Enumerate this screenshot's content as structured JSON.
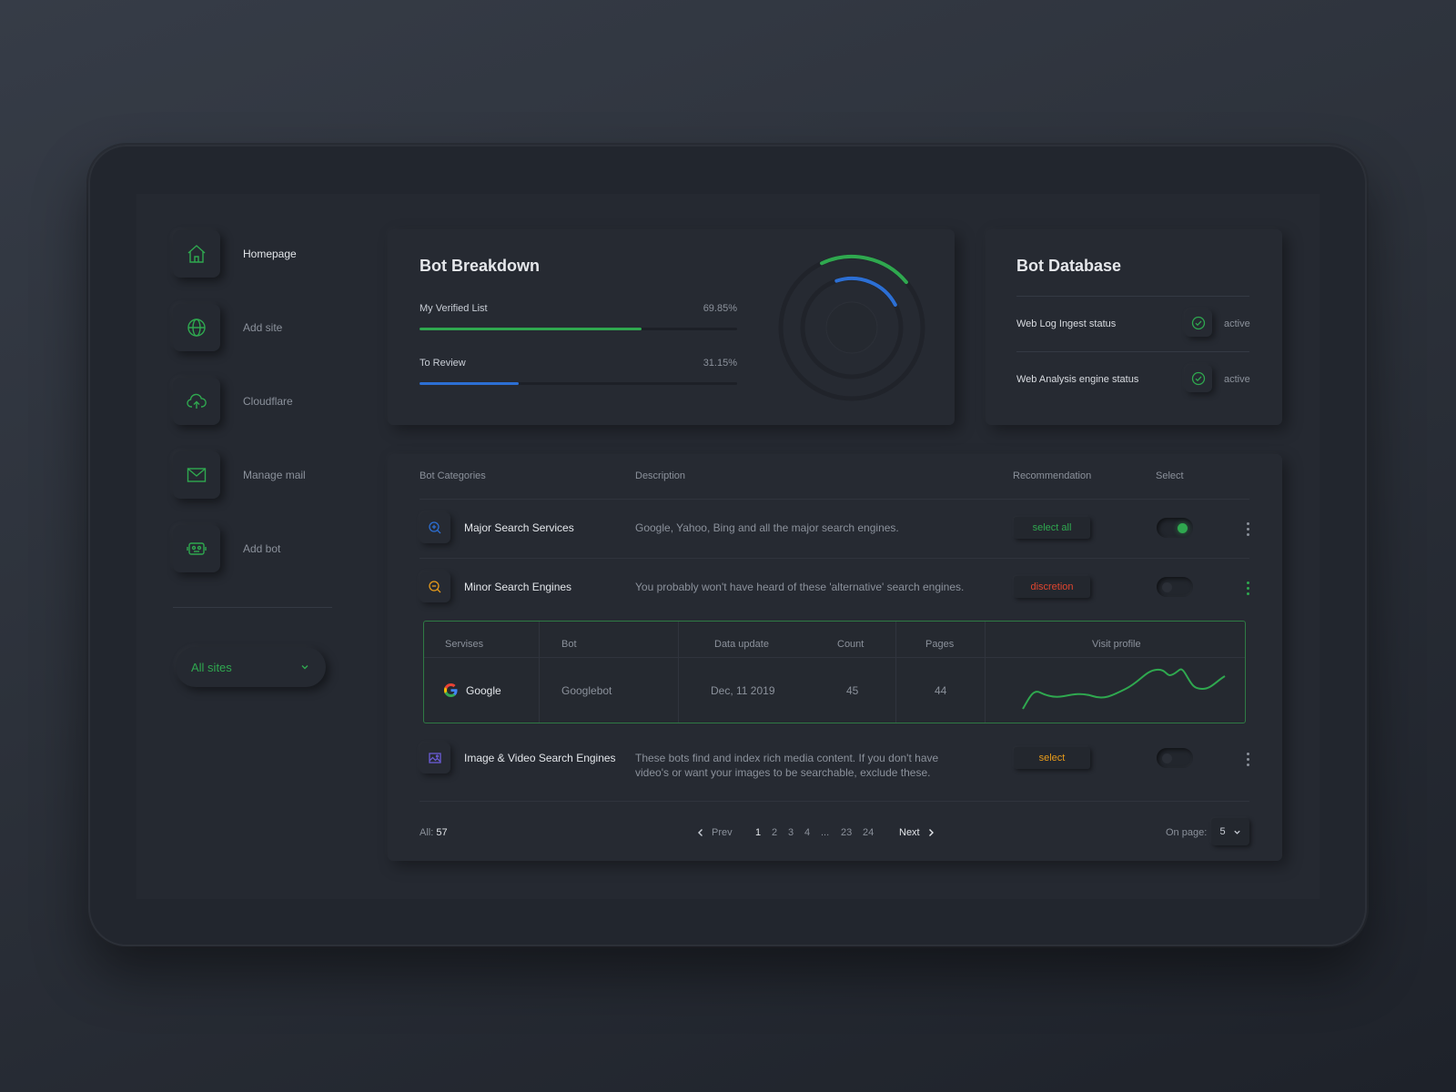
{
  "sidebar": {
    "items": [
      {
        "label": "Homepage",
        "icon": "home-icon"
      },
      {
        "label": "Add site",
        "icon": "globe-icon"
      },
      {
        "label": "Cloudflare",
        "icon": "cloud-upload-icon"
      },
      {
        "label": "Manage mail",
        "icon": "mail-icon"
      },
      {
        "label": "Add bot",
        "icon": "robot-icon"
      }
    ],
    "site_select": {
      "value": "All sites"
    }
  },
  "breakdown": {
    "title": "Bot Breakdown",
    "bars": [
      {
        "label": "My Verified List",
        "percent_label": "69.85%",
        "value": 0.6985,
        "color": "#2fa84f"
      },
      {
        "label": "To Review",
        "percent_label": "31.15%",
        "value": 0.3115,
        "color": "#2c6fd4"
      }
    ]
  },
  "database": {
    "title": "Bot Database",
    "rows": [
      {
        "label": "Web Log Ingest status",
        "status": "active"
      },
      {
        "label": "Web Analysis engine status",
        "status": "active"
      }
    ]
  },
  "table": {
    "headers": {
      "category": "Bot Categories",
      "description": "Description",
      "recommendation": "Recommendation",
      "select": "Select"
    },
    "rows": [
      {
        "name": "Major Search Services",
        "description": "Google, Yahoo, Bing and all the major search engines.",
        "recommendation": "select all",
        "rec_color": "#2fa84f",
        "selected": true,
        "icon": "zoom-in-icon"
      },
      {
        "name": "Minor Search Engines",
        "description": "You probably won't have heard of these 'alternative' search engines.",
        "recommendation": "discretion",
        "rec_color": "#e0452f",
        "selected": false,
        "icon": "zoom-out-icon"
      },
      {
        "name": "Image & Video Search Engines",
        "description": "These bots find and index rich media content. If you don't have video's or want your images to be searchable, exclude these.",
        "recommendation": "select",
        "rec_color": "#e89b1a",
        "selected": false,
        "icon": "image-icon"
      }
    ],
    "sub_table": {
      "headers": {
        "services": "Servises",
        "bot": "Bot",
        "date": "Data update",
        "count": "Count",
        "pages": "Pages",
        "profile": "Visit profile"
      },
      "row": {
        "service": "Google",
        "bot": "Googlebot",
        "date": "Dec, 11 2019",
        "count": "45",
        "pages": "44",
        "icon": "google-icon"
      }
    }
  },
  "footer": {
    "all_label": "All:",
    "all_value": "57",
    "prev": "Prev",
    "next": "Next",
    "pages": [
      "1",
      "2",
      "3",
      "4",
      "...",
      "23",
      "24"
    ],
    "current_page": "1",
    "per_page_label": "On page:",
    "per_page_value": "5"
  }
}
